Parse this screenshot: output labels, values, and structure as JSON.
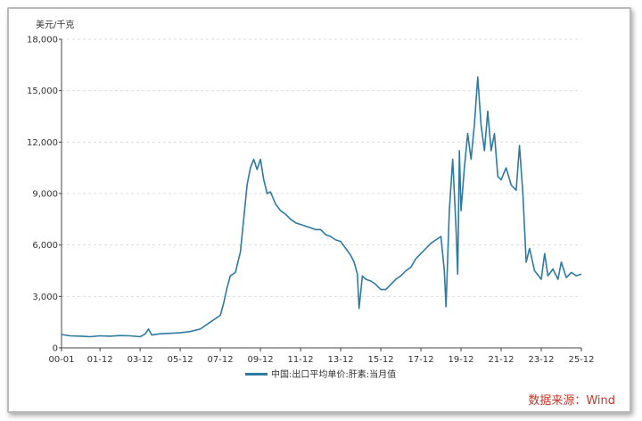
{
  "chart_data": {
    "type": "line",
    "unit_label": "美元/千克",
    "ylim": [
      0,
      18000
    ],
    "yticks": [
      "0",
      "3,000",
      "6,000",
      "9,000",
      "12,000",
      "15,000",
      "18,000"
    ],
    "xticks": [
      "00-01",
      "01-12",
      "03-12",
      "05-12",
      "07-12",
      "09-12",
      "11-12",
      "13-12",
      "15-12",
      "17-12",
      "19-12",
      "21-12",
      "23-12",
      "25-12"
    ],
    "grid": "horizontal dashed",
    "legend_position": "bottom-center",
    "series": [
      {
        "name": "中国:出口平均单价:肝素:当月值",
        "color": "#2e7aa0",
        "points": [
          [
            "2000-01",
            780
          ],
          [
            "2000-06",
            700
          ],
          [
            "2001-01",
            680
          ],
          [
            "2001-06",
            650
          ],
          [
            "2001-12",
            700
          ],
          [
            "2002-06",
            680
          ],
          [
            "2002-12",
            720
          ],
          [
            "2003-06",
            700
          ],
          [
            "2003-12",
            650
          ],
          [
            "2004-03",
            800
          ],
          [
            "2004-05",
            1100
          ],
          [
            "2004-07",
            750
          ],
          [
            "2004-12",
            820
          ],
          [
            "2005-06",
            850
          ],
          [
            "2005-12",
            880
          ],
          [
            "2006-06",
            950
          ],
          [
            "2006-12",
            1100
          ],
          [
            "2007-06",
            1500
          ],
          [
            "2007-12",
            1900
          ],
          [
            "2008-02",
            2600
          ],
          [
            "2008-04",
            3500
          ],
          [
            "2008-06",
            4200
          ],
          [
            "2008-09",
            4400
          ],
          [
            "2008-12",
            5600
          ],
          [
            "2009-02",
            7500
          ],
          [
            "2009-04",
            9500
          ],
          [
            "2009-06",
            10500
          ],
          [
            "2009-08",
            11000
          ],
          [
            "2009-10",
            10400
          ],
          [
            "2009-12",
            11000
          ],
          [
            "2010-02",
            9800
          ],
          [
            "2010-04",
            9000
          ],
          [
            "2010-06",
            9100
          ],
          [
            "2010-09",
            8400
          ],
          [
            "2010-12",
            8000
          ],
          [
            "2011-03",
            7800
          ],
          [
            "2011-06",
            7500
          ],
          [
            "2011-09",
            7300
          ],
          [
            "2011-12",
            7200
          ],
          [
            "2012-03",
            7100
          ],
          [
            "2012-06",
            7000
          ],
          [
            "2012-09",
            6900
          ],
          [
            "2012-12",
            6900
          ],
          [
            "2013-03",
            6600
          ],
          [
            "2013-06",
            6500
          ],
          [
            "2013-09",
            6300
          ],
          [
            "2013-12",
            6200
          ],
          [
            "2014-03",
            5800
          ],
          [
            "2014-06",
            5400
          ],
          [
            "2014-08",
            5000
          ],
          [
            "2014-10",
            4300
          ],
          [
            "2014-11",
            2300
          ],
          [
            "2015-01",
            4200
          ],
          [
            "2015-03",
            4000
          ],
          [
            "2015-06",
            3900
          ],
          [
            "2015-09",
            3700
          ],
          [
            "2015-12",
            3400
          ],
          [
            "2016-03",
            3400
          ],
          [
            "2016-06",
            3700
          ],
          [
            "2016-09",
            4000
          ],
          [
            "2016-12",
            4200
          ],
          [
            "2017-03",
            4500
          ],
          [
            "2017-06",
            4700
          ],
          [
            "2017-09",
            5200
          ],
          [
            "2017-12",
            5500
          ],
          [
            "2018-03",
            5800
          ],
          [
            "2018-06",
            6100
          ],
          [
            "2018-09",
            6300
          ],
          [
            "2018-12",
            6500
          ],
          [
            "2019-02",
            4500
          ],
          [
            "2019-03",
            2400
          ],
          [
            "2019-05",
            8000
          ],
          [
            "2019-07",
            11000
          ],
          [
            "2019-09",
            7000
          ],
          [
            "2019-10",
            4300
          ],
          [
            "2019-11",
            11500
          ],
          [
            "2019-12",
            8000
          ],
          [
            "2020-02",
            10500
          ],
          [
            "2020-04",
            12500
          ],
          [
            "2020-06",
            11000
          ],
          [
            "2020-08",
            13000
          ],
          [
            "2020-10",
            15800
          ],
          [
            "2020-12",
            13000
          ],
          [
            "2021-02",
            11500
          ],
          [
            "2021-04",
            13800
          ],
          [
            "2021-06",
            11500
          ],
          [
            "2021-08",
            12500
          ],
          [
            "2021-10",
            10000
          ],
          [
            "2021-12",
            9800
          ],
          [
            "2022-03",
            10500
          ],
          [
            "2022-06",
            9500
          ],
          [
            "2022-09",
            9200
          ],
          [
            "2022-11",
            11800
          ],
          [
            "2023-01",
            9000
          ],
          [
            "2023-03",
            5000
          ],
          [
            "2023-05",
            5800
          ],
          [
            "2023-08",
            4500
          ],
          [
            "2023-12",
            4000
          ],
          [
            "2024-02",
            5500
          ],
          [
            "2024-04",
            4200
          ],
          [
            "2024-07",
            4600
          ],
          [
            "2024-10",
            4000
          ],
          [
            "2024-12",
            5000
          ],
          [
            "2025-03",
            4100
          ],
          [
            "2025-06",
            4400
          ],
          [
            "2025-09",
            4200
          ],
          [
            "2025-12",
            4300
          ]
        ]
      }
    ],
    "source_text": "数据来源：Wind"
  }
}
